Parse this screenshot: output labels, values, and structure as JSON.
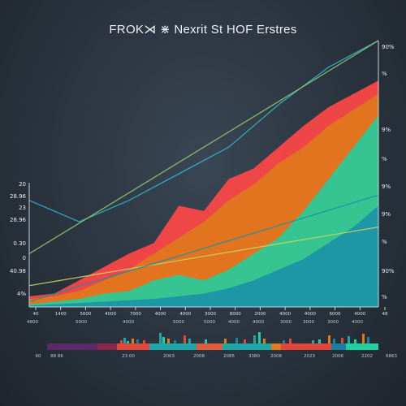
{
  "chart_data": {
    "type": "area",
    "title": "FROK⋊ ⋇ Nexrit St HOF Erstres",
    "x_ticks": [
      "40",
      "1400",
      "5600",
      "4000",
      "7000",
      "4000",
      "4000",
      "3000",
      "8000",
      "2000",
      "4000",
      "4000",
      "6000",
      "4000",
      "48"
    ],
    "x_values": [
      0,
      1,
      2,
      3,
      4,
      5,
      6,
      7,
      8,
      9,
      10,
      11,
      12,
      13,
      14
    ],
    "y_ticks_left": [
      "20",
      "28.96",
      "23",
      "28.96",
      "0.30",
      "0",
      "40.98",
      "4%"
    ],
    "y_ticks_right": [
      "90%",
      "%",
      "9%",
      "%",
      "9%",
      "9%",
      "%",
      "90%",
      "%"
    ],
    "bottom_labels": [
      "4800",
      "5000",
      "4000",
      "5000",
      "5000",
      "4000",
      "4000",
      "3000",
      "3000",
      "3000",
      "4000"
    ],
    "bottom_strip_labels": [
      "60",
      "88 86",
      "23 00",
      "2003",
      "2008",
      "2085",
      "3380",
      "2008",
      "2023",
      "2006",
      "2202",
      "6863",
      "62"
    ],
    "series": [
      {
        "color": "#ff4747",
        "x": [
          0,
          1,
          2,
          3,
          4,
          5,
          6,
          7,
          8,
          9,
          10,
          11,
          12,
          13,
          14
        ],
        "values": [
          4,
          5,
          10,
          15,
          20,
          24,
          38,
          36,
          48,
          52,
          60,
          68,
          75,
          80,
          85
        ]
      },
      {
        "color": "#e07a1a",
        "x": [
          0,
          1,
          2,
          3,
          4,
          5,
          6,
          7,
          8,
          9,
          10,
          11,
          12,
          13,
          14
        ],
        "values": [
          3,
          4,
          6,
          10,
          14,
          20,
          26,
          32,
          40,
          46,
          54,
          60,
          68,
          74,
          80
        ]
      },
      {
        "color": "#1ecfa0",
        "x": [
          0,
          1,
          2,
          3,
          4,
          5,
          6,
          7,
          8,
          9,
          10,
          11,
          12,
          13,
          14
        ],
        "values": [
          1,
          2,
          3,
          5,
          6,
          10,
          12,
          10,
          14,
          20,
          26,
          36,
          48,
          60,
          72
        ]
      },
      {
        "color": "#1a90a8",
        "x": [
          0,
          1,
          2,
          3,
          4,
          5,
          6,
          7,
          8,
          9,
          10,
          11,
          12,
          13,
          14
        ],
        "values": [
          0.5,
          1,
          1.5,
          2,
          2.5,
          3,
          4,
          5,
          7,
          10,
          14,
          18,
          24,
          30,
          38
        ]
      }
    ],
    "trend_lines": [
      {
        "color": "#2bb6c8",
        "x": [
          0,
          2,
          4,
          6,
          8,
          10,
          12,
          14
        ],
        "values": [
          40,
          32,
          40,
          50,
          60,
          76,
          90,
          100
        ]
      },
      {
        "color": "#8fc86a",
        "x": [
          0,
          14
        ],
        "values": [
          20,
          100
        ]
      },
      {
        "color": "#c8d068",
        "x": [
          0,
          14
        ],
        "values": [
          8,
          30
        ]
      },
      {
        "color": "#1a90a8",
        "x": [
          0,
          14
        ],
        "values": [
          2,
          42
        ]
      }
    ],
    "ylim": [
      0,
      100
    ],
    "xlim": [
      0,
      14
    ],
    "grid": false,
    "legend": "none"
  }
}
